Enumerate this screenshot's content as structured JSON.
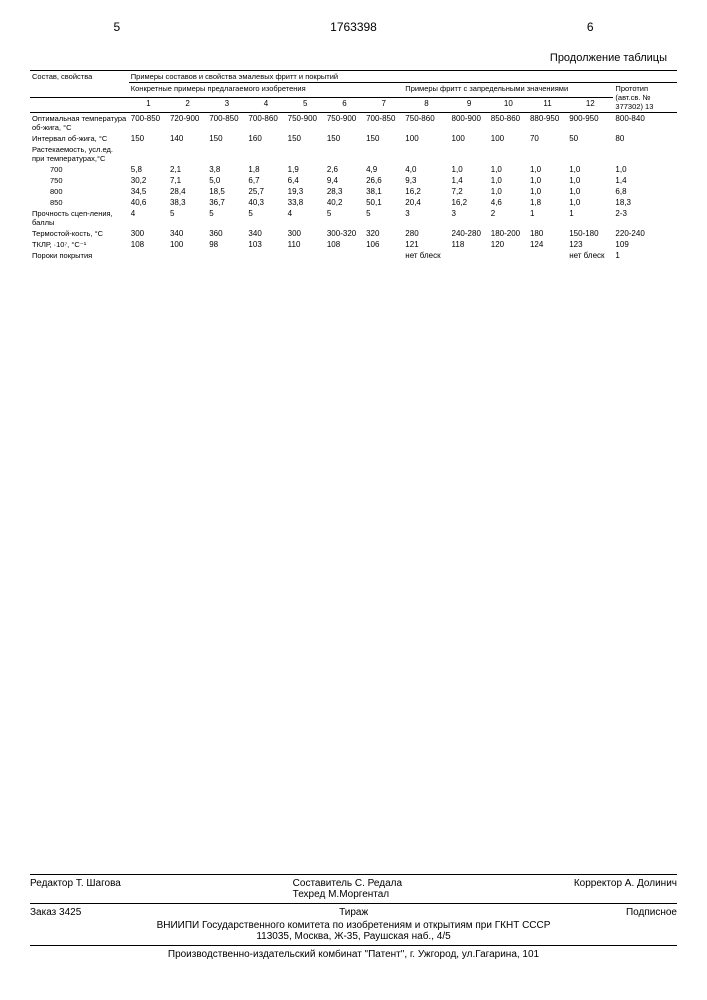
{
  "doc_number": "1763398",
  "page_left": "5",
  "page_right": "6",
  "table_continuation": "Продолжение таблицы",
  "table": {
    "title_row": "Примеры составов и свойства эмалевых фритт и покрытий",
    "header_left": "Состав, свойства",
    "header_group1": "Конкретные примеры предлагаемого изобретения",
    "header_group2": "Примеры фритт с запредельными значениями",
    "header_group3": "Прототип (авт.св. № 377302) 13",
    "cols": [
      "1",
      "2",
      "3",
      "4",
      "5",
      "6",
      "7",
      "8",
      "9",
      "10",
      "11",
      "12"
    ],
    "rows": [
      {
        "label": "Оптимальная температура об-жига, °С",
        "values": [
          "700-850",
          "720-900",
          "700-850",
          "700-860",
          "750-900",
          "750-900",
          "700-850",
          "750-860",
          "800-900",
          "850-860",
          "880-950",
          "900-950",
          "800-840"
        ]
      },
      {
        "label": "Интервал об-жига, °С",
        "values": [
          "150",
          "140",
          "150",
          "160",
          "150",
          "150",
          "150",
          "100",
          "100",
          "100",
          "70",
          "50",
          "80"
        ]
      },
      {
        "label": "Растекаемость, усл.ед. при температурах,°С",
        "values": [
          "",
          "",
          "",
          "",
          "",
          "",
          "",
          "",
          "",
          "",
          "",
          "",
          ""
        ]
      },
      {
        "label": "700",
        "indent": true,
        "values": [
          "5,8",
          "2,1",
          "3,8",
          "1,8",
          "1,9",
          "2,6",
          "4,9",
          "4,0",
          "1,0",
          "1,0",
          "1,0",
          "1,0",
          "1,0"
        ]
      },
      {
        "label": "750",
        "indent": true,
        "values": [
          "30,2",
          "7,1",
          "5,0",
          "6,7",
          "6,4",
          "9,4",
          "26,6",
          "9,3",
          "1,4",
          "1,0",
          "1,0",
          "1,0",
          "1,4"
        ]
      },
      {
        "label": "800",
        "indent": true,
        "values": [
          "34,5",
          "28,4",
          "18,5",
          "25,7",
          "19,3",
          "28,3",
          "38,1",
          "16,2",
          "7,2",
          "1,0",
          "1,0",
          "1,0",
          "6,8"
        ]
      },
      {
        "label": "850",
        "indent": true,
        "values": [
          "40,6",
          "38,3",
          "36,7",
          "40,3",
          "33,8",
          "40,2",
          "50,1",
          "20,4",
          "16,2",
          "4,6",
          "1,8",
          "1,0",
          "18,3"
        ]
      },
      {
        "label": "Прочность сцеп-ления, баллы",
        "values": [
          "4",
          "5",
          "5",
          "5",
          "4",
          "5",
          "5",
          "3",
          "3",
          "2",
          "1",
          "1",
          "2-3"
        ]
      },
      {
        "label": "Термостой-кость, °С",
        "values": [
          "300",
          "340",
          "360",
          "340",
          "300",
          "300-320",
          "320",
          "280",
          "240-280",
          "180-200",
          "180",
          "150-180",
          "220-240"
        ]
      },
      {
        "label": "ТКЛР, ·10⁷, °С⁻¹",
        "values": [
          "108",
          "100",
          "98",
          "103",
          "110",
          "108",
          "106",
          "121",
          "118",
          "120",
          "124",
          "123",
          "109"
        ]
      },
      {
        "label": "Пороки покрытия",
        "values": [
          "",
          "",
          "",
          "",
          "",
          "",
          "",
          "нет блеск",
          "",
          "",
          "",
          "нет блеск",
          "1"
        ]
      }
    ]
  },
  "footer": {
    "compiler_label": "Составитель",
    "compiler": "С. Редала",
    "editor_label": "Редактор",
    "editor": "Т. Шагова",
    "techred_label": "Техред",
    "techred": "М.Моргентал",
    "corrector_label": "Корректор",
    "corrector": "А. Долинич",
    "order_label": "Заказ",
    "order": "3425",
    "tirazh_label": "Тираж",
    "subscription": "Подписное",
    "org": "ВНИИПИ Государственного комитета по изобретениям и открытиям при ГКНТ СССР",
    "address": "113035, Москва, Ж-35, Раушская наб., 4/5",
    "printer": "Производственно-издательский комбинат \"Патент\", г. Ужгород, ул.Гагарина, 101"
  }
}
